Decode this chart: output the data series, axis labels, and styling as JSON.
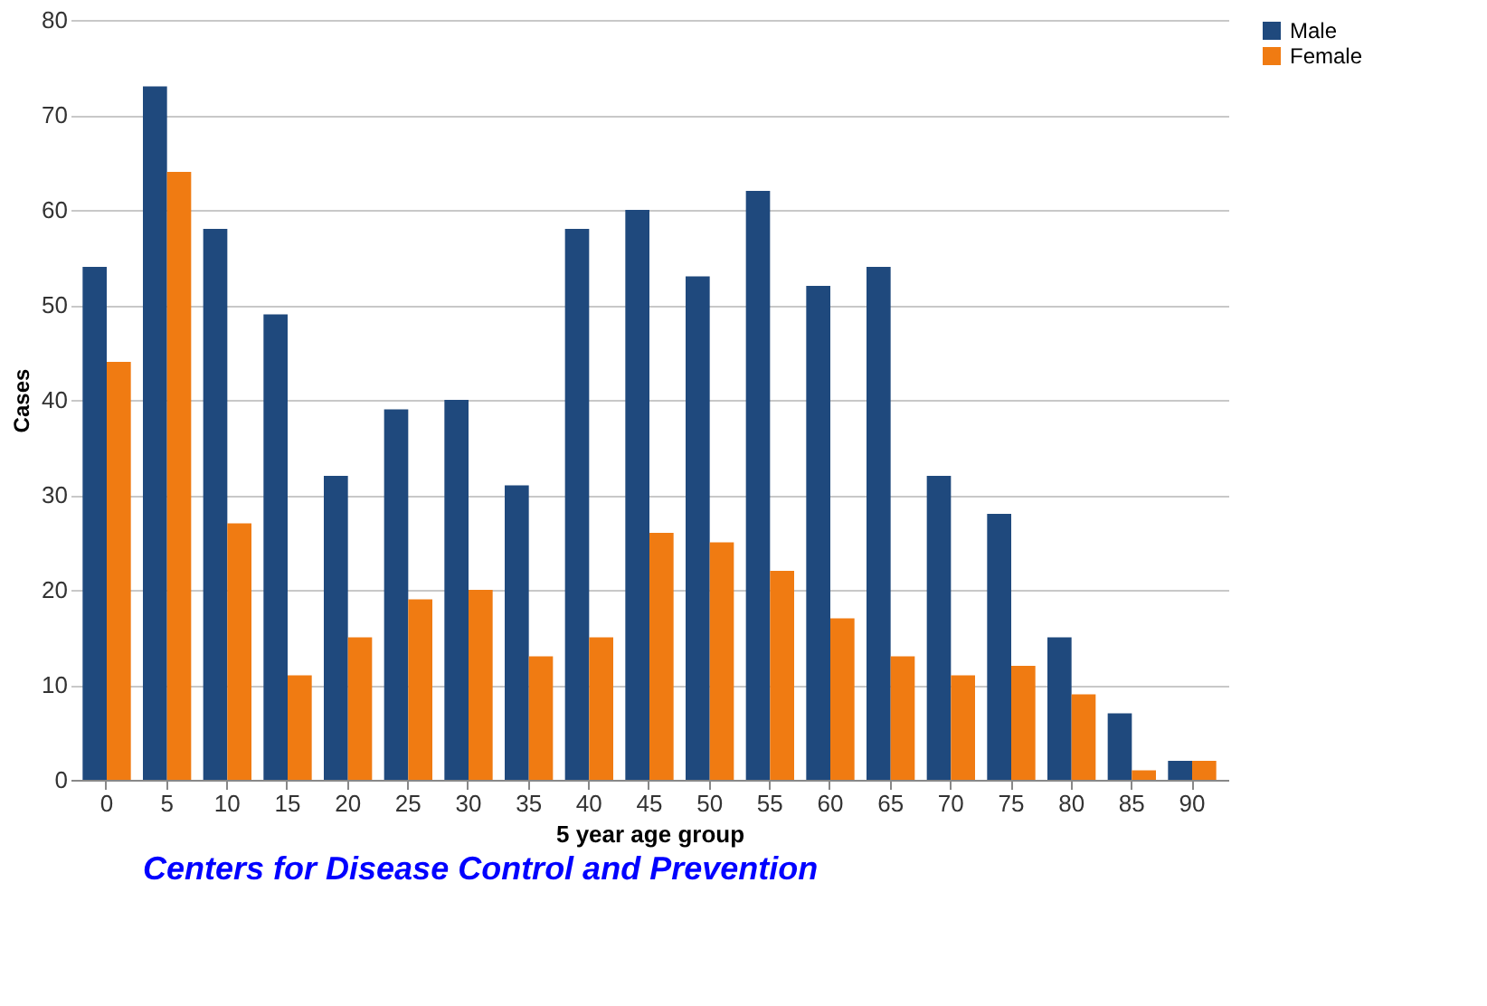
{
  "chart_data": {
    "type": "bar",
    "xlabel": "5 year age group",
    "ylabel": "Cases",
    "categories": [
      "0",
      "5",
      "10",
      "15",
      "20",
      "25",
      "30",
      "35",
      "40",
      "45",
      "50",
      "55",
      "60",
      "65",
      "70",
      "75",
      "80",
      "85",
      "90"
    ],
    "series": [
      {
        "name": "Male",
        "color": "#1f497d",
        "values": [
          54,
          73,
          58,
          49,
          32,
          39,
          40,
          31,
          58,
          60,
          53,
          62,
          52,
          54,
          32,
          28,
          15,
          7,
          2
        ]
      },
      {
        "name": "Female",
        "color": "#f07b12",
        "values": [
          44,
          64,
          27,
          11,
          15,
          19,
          20,
          13,
          15,
          26,
          25,
          22,
          17,
          13,
          11,
          12,
          9,
          1,
          2
        ]
      }
    ],
    "ylim": [
      0,
      80
    ],
    "yticks": [
      0,
      10,
      20,
      30,
      40,
      50,
      60,
      70,
      80
    ],
    "grid": "y",
    "legend": "right",
    "annotations": [
      "Centers for Disease Control and Prevention"
    ]
  }
}
